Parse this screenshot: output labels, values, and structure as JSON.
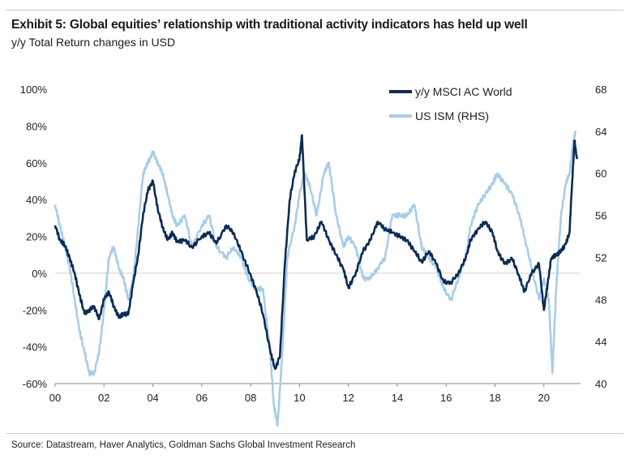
{
  "header": {
    "title": "Exhibit 5: Global equities’ relationship with traditional activity indicators has held up well",
    "subtitle": "y/y Total Return changes in USD"
  },
  "footer": {
    "source": "Source: Datastream, Haver Analytics, Goldman Sachs Global Investment Research"
  },
  "colors": {
    "msci": "#0d2c54",
    "ism": "#a8cde9",
    "axis": "#888888"
  },
  "chart_data": {
    "type": "line",
    "title": "",
    "grid": false,
    "legend_position": "top-right",
    "x_ticks": [
      "00",
      "02",
      "04",
      "06",
      "08",
      "10",
      "12",
      "14",
      "16",
      "18",
      "20"
    ],
    "x_range": [
      2000.0,
      2021.5
    ],
    "left_axis": {
      "range": [
        -60,
        100
      ],
      "ticks": [
        100,
        80,
        60,
        40,
        20,
        0,
        -20,
        -40,
        -60
      ],
      "tick_labels": [
        "100%",
        "80%",
        "60%",
        "40%",
        "20%",
        "0%",
        "-20%",
        "-40%",
        "-60%"
      ]
    },
    "right_axis": {
      "range": [
        40,
        68
      ],
      "ticks": [
        68,
        64,
        60,
        56,
        52,
        48,
        44,
        40
      ],
      "tick_labels": [
        "68",
        "64",
        "60",
        "56",
        "52",
        "48",
        "44",
        "40"
      ]
    },
    "series": [
      {
        "name": "y/y MSCI AC World",
        "axis": "left",
        "x": [
          2000.0,
          2000.2,
          2000.4,
          2000.6,
          2000.8,
          2001.0,
          2001.2,
          2001.4,
          2001.6,
          2001.8,
          2002.0,
          2002.2,
          2002.4,
          2002.6,
          2002.8,
          2003.0,
          2003.2,
          2003.4,
          2003.6,
          2003.8,
          2004.0,
          2004.2,
          2004.4,
          2004.6,
          2004.8,
          2005.0,
          2005.3,
          2005.6,
          2006.0,
          2006.3,
          2006.6,
          2007.0,
          2007.3,
          2007.6,
          2007.9,
          2008.2,
          2008.5,
          2008.8,
          2009.0,
          2009.2,
          2009.4,
          2009.6,
          2009.8,
          2010.0,
          2010.1,
          2010.3,
          2010.6,
          2010.9,
          2011.2,
          2011.5,
          2011.8,
          2012.0,
          2012.3,
          2012.6,
          2012.9,
          2013.2,
          2013.5,
          2013.8,
          2014.1,
          2014.4,
          2014.7,
          2015.0,
          2015.3,
          2015.6,
          2015.9,
          2016.2,
          2016.5,
          2016.8,
          2017.0,
          2017.3,
          2017.6,
          2017.9,
          2018.1,
          2018.4,
          2018.7,
          2019.0,
          2019.2,
          2019.5,
          2019.8,
          2020.0,
          2020.15,
          2020.3,
          2020.5,
          2020.7,
          2020.9,
          2021.05,
          2021.15,
          2021.25,
          2021.35
        ],
        "values": [
          26,
          18,
          15,
          8,
          0,
          -12,
          -22,
          -20,
          -18,
          -25,
          -14,
          -10,
          -18,
          -24,
          -22,
          -22,
          -5,
          10,
          32,
          45,
          50,
          35,
          25,
          18,
          22,
          17,
          18,
          14,
          20,
          22,
          16,
          26,
          22,
          12,
          2,
          -8,
          -22,
          -42,
          -52,
          -45,
          5,
          40,
          55,
          62,
          75,
          18,
          20,
          28,
          18,
          10,
          2,
          -8,
          0,
          12,
          18,
          28,
          24,
          22,
          20,
          18,
          12,
          6,
          12,
          5,
          -5,
          -5,
          0,
          8,
          18,
          24,
          28,
          22,
          12,
          5,
          8,
          -2,
          -10,
          0,
          5,
          -20,
          -6,
          8,
          10,
          12,
          16,
          22,
          48,
          72,
          62
        ]
      },
      {
        "name": "US ISM (RHS)",
        "axis": "right",
        "x": [
          2000.0,
          2000.2,
          2000.4,
          2000.6,
          2000.8,
          2001.0,
          2001.2,
          2001.4,
          2001.6,
          2001.8,
          2002.0,
          2002.2,
          2002.4,
          2002.6,
          2002.8,
          2003.0,
          2003.2,
          2003.4,
          2003.6,
          2003.8,
          2004.0,
          2004.2,
          2004.4,
          2004.6,
          2004.8,
          2005.0,
          2005.3,
          2005.6,
          2006.0,
          2006.3,
          2006.6,
          2007.0,
          2007.3,
          2007.6,
          2007.9,
          2008.2,
          2008.5,
          2008.8,
          2008.95,
          2009.1,
          2009.3,
          2009.5,
          2009.8,
          2010.0,
          2010.2,
          2010.4,
          2010.7,
          2011.0,
          2011.2,
          2011.5,
          2011.8,
          2012.0,
          2012.3,
          2012.6,
          2012.9,
          2013.2,
          2013.5,
          2013.8,
          2014.1,
          2014.4,
          2014.7,
          2015.0,
          2015.3,
          2015.6,
          2015.9,
          2016.2,
          2016.5,
          2016.8,
          2017.0,
          2017.3,
          2017.6,
          2017.9,
          2018.1,
          2018.4,
          2018.7,
          2019.0,
          2019.2,
          2019.5,
          2019.8,
          2020.0,
          2020.2,
          2020.35,
          2020.5,
          2020.7,
          2020.9,
          2021.05,
          2021.2,
          2021.3
        ],
        "values": [
          57,
          55,
          53,
          51,
          48,
          45,
          43,
          41,
          41,
          43,
          47,
          52,
          53,
          51,
          50,
          48,
          50,
          55,
          60,
          61,
          62,
          61,
          60,
          58,
          56,
          55,
          56,
          53,
          55,
          56,
          53,
          52,
          53,
          52,
          50,
          49,
          49,
          43,
          38,
          36,
          43,
          52,
          55,
          58,
          60,
          59,
          56,
          60,
          61,
          56,
          53,
          54,
          53,
          50,
          50,
          51,
          52,
          56,
          56,
          56,
          57,
          53,
          52,
          51,
          49,
          48,
          50,
          52,
          55,
          57,
          58,
          59,
          60,
          59,
          58,
          56,
          54,
          51,
          48,
          50,
          48,
          41,
          49,
          56,
          59,
          60,
          63,
          64
        ]
      }
    ]
  }
}
